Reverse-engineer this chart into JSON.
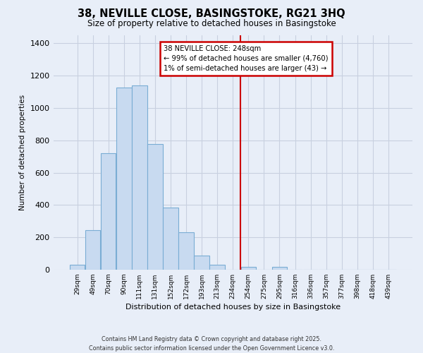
{
  "title": "38, NEVILLE CLOSE, BASINGSTOKE, RG21 3HQ",
  "subtitle": "Size of property relative to detached houses in Basingstoke",
  "xlabel": "Distribution of detached houses by size in Basingstoke",
  "ylabel": "Number of detached properties",
  "bar_labels": [
    "29sqm",
    "49sqm",
    "70sqm",
    "90sqm",
    "111sqm",
    "131sqm",
    "152sqm",
    "172sqm",
    "193sqm",
    "213sqm",
    "234sqm",
    "254sqm",
    "275sqm",
    "295sqm",
    "316sqm",
    "336sqm",
    "357sqm",
    "377sqm",
    "398sqm",
    "418sqm",
    "439sqm"
  ],
  "bar_values": [
    30,
    245,
    720,
    1125,
    1140,
    775,
    385,
    230,
    85,
    28,
    0,
    18,
    0,
    15,
    0,
    0,
    0,
    0,
    0,
    0,
    0
  ],
  "bar_color": "#c8daf0",
  "bar_edge_color": "#7aadd4",
  "vline_index": 11,
  "vline_color": "#cc0000",
  "annotation_line1": "38 NEVILLE CLOSE: 248sqm",
  "annotation_line2": "← 99% of detached houses are smaller (4,760)",
  "annotation_line3": "1% of semi-detached houses are larger (43) →",
  "ylim": [
    0,
    1450
  ],
  "grid_color": "#c8d0e0",
  "background_color": "#e8eef8",
  "footer_line1": "Contains HM Land Registry data © Crown copyright and database right 2025.",
  "footer_line2": "Contains public sector information licensed under the Open Government Licence v3.0."
}
